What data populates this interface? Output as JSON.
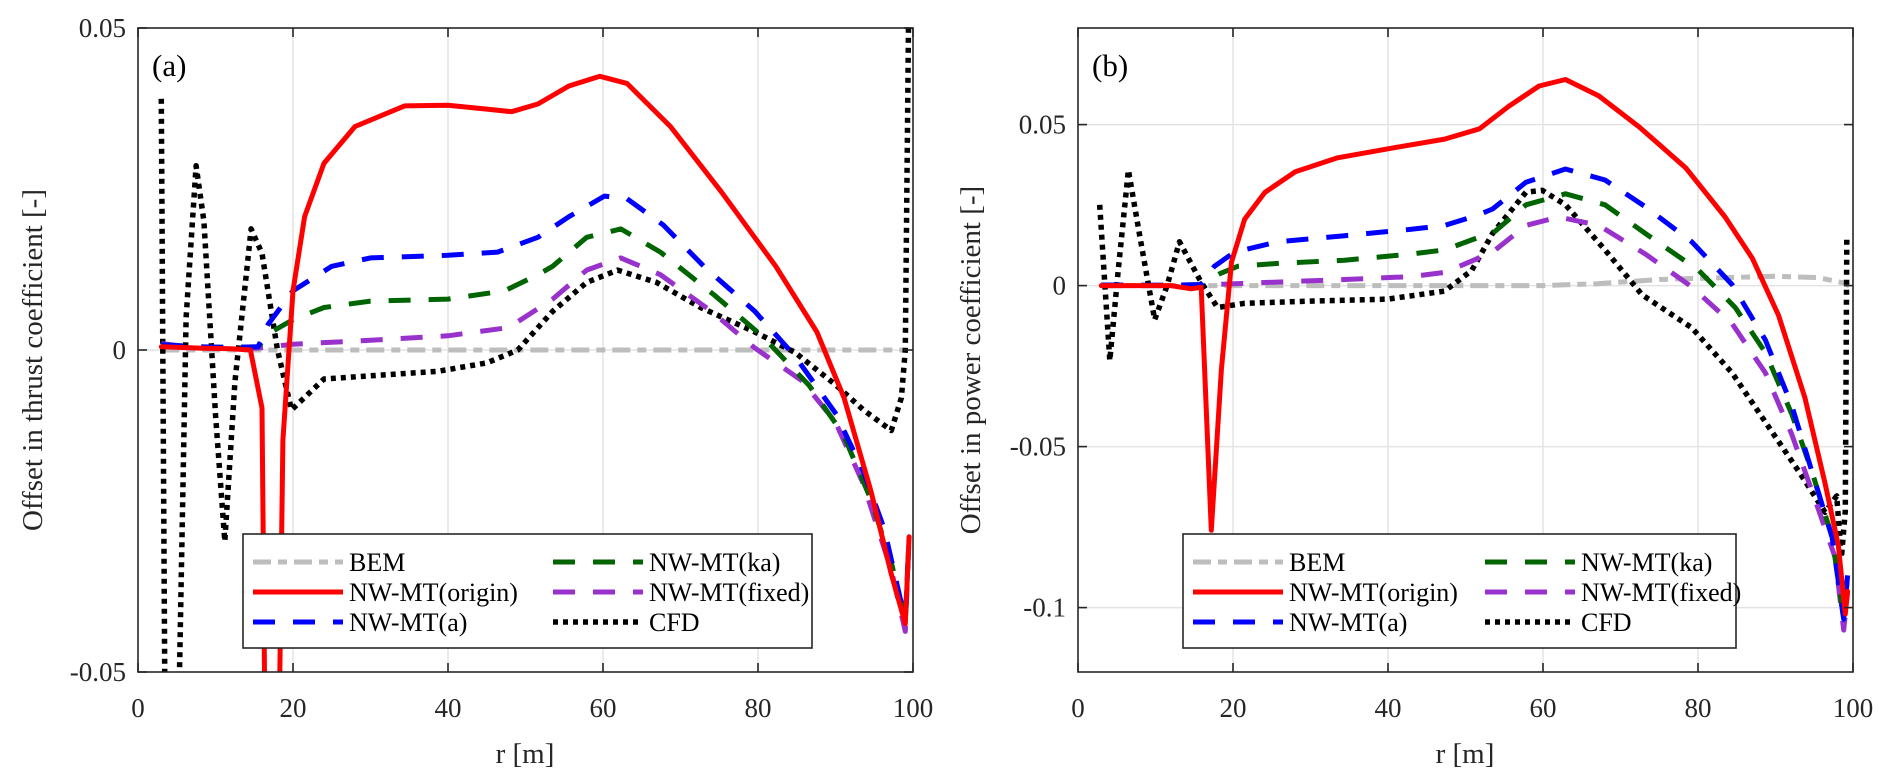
{
  "chart_data": [
    {
      "type": "line",
      "panel_label": "(a)",
      "title": "",
      "xlabel": "r [m]",
      "ylabel": "Offset in thrust coefficient [-]",
      "xlim": [
        0,
        100
      ],
      "ylim": [
        -0.05,
        0.05
      ],
      "xticks": [
        0,
        20,
        40,
        60,
        80,
        100
      ],
      "xtick_labels": [
        "0",
        "20",
        "40",
        "60",
        "80",
        "100"
      ],
      "yticks": [
        -0.05,
        0,
        0.05
      ],
      "ytick_labels": [
        "-0.05",
        "0",
        "0.05"
      ],
      "grid": true,
      "legend_position": "bottom-center",
      "series": [
        {
          "name": "BEM",
          "color": "#BDBDBD",
          "style": "dashdot",
          "x": [
            3,
            10,
            20,
            30,
            40,
            50,
            60,
            70,
            80,
            90,
            99
          ],
          "y": [
            0,
            0,
            0,
            0,
            0,
            0,
            0,
            0,
            0,
            0,
            0
          ]
        },
        {
          "name": "NW-MT(origin)",
          "color": "#FF0000",
          "style": "solid",
          "x": [
            3,
            8,
            12,
            14.5,
            16,
            16.4,
            17,
            18.2,
            18.7,
            20,
            21.5,
            24,
            28,
            34.4,
            40,
            45,
            48.2,
            51.6,
            55.6,
            59.6,
            63.1,
            68.7,
            75.3,
            82.3,
            87.6,
            91.1,
            94.6,
            97.2,
            99,
            99.5
          ],
          "y": [
            0.0005,
            0.0003,
            0.0002,
            0,
            -0.009,
            -0.06,
            -0.06,
            -0.06,
            -0.014,
            0.0092,
            0.0207,
            0.029,
            0.0347,
            0.0379,
            0.038,
            0.0374,
            0.037,
            0.0382,
            0.041,
            0.0425,
            0.0414,
            0.0347,
            0.0245,
            0.013,
            0.0028,
            -0.0074,
            -0.022,
            -0.0348,
            -0.0425,
            -0.029
          ]
        },
        {
          "name": "NW-MT(a)",
          "color": "#0000FF",
          "style": "dashed",
          "x": [
            3,
            8,
            12,
            15.5,
            16.8,
            20,
            25,
            30,
            40,
            46.4,
            51.6,
            55.6,
            60.2,
            63.1,
            67.8,
            73,
            79.6,
            84.8,
            90.1,
            93.6,
            96.3,
            99,
            99.5
          ],
          "y": [
            0.0008,
            0.0005,
            0.0004,
            0.0005,
            0.004,
            0.0092,
            0.013,
            0.0143,
            0.0147,
            0.0152,
            0.0175,
            0.0207,
            0.0239,
            0.0235,
            0.0194,
            0.013,
            0.006,
            -0.001,
            -0.01,
            -0.0189,
            -0.0278,
            -0.042,
            -0.029
          ]
        },
        {
          "name": "NW-MT(ka)",
          "color": "#006400",
          "style": "dashed",
          "x": [
            3,
            8,
            12,
            15.5,
            17.2,
            20,
            24,
            30,
            40,
            47.3,
            51.6,
            53.5,
            57.9,
            62.3,
            67.4,
            74.4,
            80.5,
            86.6,
            91,
            94.6,
            97.2,
            99,
            99.5
          ],
          "y": [
            0.0008,
            0.0005,
            0.0004,
            0.0005,
            0.0028,
            0.0047,
            0.0066,
            0.0076,
            0.0079,
            0.0092,
            0.0117,
            0.013,
            0.0175,
            0.0188,
            0.0152,
            0.0085,
            0.0022,
            -0.0055,
            -0.0131,
            -0.0233,
            -0.033,
            -0.042,
            -0.029
          ]
        },
        {
          "name": "NW-MT(fixed)",
          "color": "#9932CC",
          "style": "dashed",
          "x": [
            3,
            8,
            12,
            15.5,
            20,
            30,
            40,
            47.3,
            49,
            53.5,
            57.9,
            62.3,
            67.4,
            74,
            79.6,
            85.7,
            90,
            93.6,
            97.2,
            99,
            99.5
          ],
          "y": [
            0.001,
            0.0003,
            0.0002,
            0.0003,
            0.0009,
            0.0015,
            0.0022,
            0.0034,
            0.0044,
            0.0079,
            0.0124,
            0.0143,
            0.0117,
            0.006,
            0.0003,
            -0.0048,
            -0.0112,
            -0.0208,
            -0.0342,
            -0.0437,
            -0.029
          ]
        },
        {
          "name": "CFD",
          "color": "#000000",
          "style": "dotted",
          "x": [
            3,
            3.5,
            4.2,
            5.2,
            6.2,
            7.5,
            8.5,
            10,
            11.2,
            12.5,
            14.6,
            16,
            18,
            19.8,
            24,
            30,
            38.7,
            45,
            49,
            53.5,
            57.9,
            61.9,
            66.9,
            72.6,
            79.6,
            84.8,
            90.1,
            93.6,
            97.2,
            98.5,
            99,
            99.5
          ],
          "y": [
            0.039,
            -0.06,
            -0.06,
            -0.06,
            0.005,
            0.0286,
            0.02,
            -0.01,
            -0.0297,
            -0.005,
            0.0188,
            0.015,
            0.0,
            -0.0093,
            -0.0045,
            -0.004,
            -0.0033,
            -0.002,
            0,
            0.006,
            0.0105,
            0.0124,
            0.0105,
            0.0066,
            0.0028,
            -0.0004,
            -0.0055,
            -0.0093,
            -0.0125,
            -0.0074,
            0,
            0.06
          ]
        }
      ]
    },
    {
      "type": "line",
      "panel_label": "(b)",
      "title": "",
      "xlabel": "r [m]",
      "ylabel": "Offset in power coefficient [-]",
      "xlim": [
        0,
        100
      ],
      "ylim": [
        -0.12,
        0.08
      ],
      "xticks": [
        0,
        20,
        40,
        60,
        80,
        100
      ],
      "xtick_labels": [
        "0",
        "20",
        "40",
        "60",
        "80",
        "100"
      ],
      "yticks": [
        -0.1,
        -0.05,
        0,
        0.05
      ],
      "ytick_labels": [
        "-0.1",
        "-0.05",
        "0",
        "0.05"
      ],
      "grid": true,
      "legend_position": "bottom-center",
      "series": [
        {
          "name": "BEM",
          "color": "#BDBDBD",
          "style": "dashdot",
          "x": [
            3,
            10,
            20,
            30,
            40,
            50,
            60,
            67,
            75,
            83.5,
            90,
            95.5,
            98.5,
            99.5
          ],
          "y": [
            0,
            0,
            0,
            0,
            0,
            0,
            0,
            0.0006,
            0.0019,
            0.0025,
            0.0029,
            0.0025,
            0.001,
            0
          ]
        },
        {
          "name": "NW-MT(origin)",
          "color": "#FF0000",
          "style": "solid",
          "x": [
            3,
            8,
            12,
            14.6,
            15.9,
            17.2,
            18.5,
            19.8,
            21.5,
            24.1,
            28,
            33.5,
            40,
            47.3,
            51.8,
            55.6,
            59.5,
            62.9,
            67.2,
            72.4,
            78.4,
            83.5,
            87,
            90.4,
            93.8,
            96.4,
            98.1,
            99,
            99.3
          ],
          "y": [
            0,
            0,
            0,
            -0.001,
            -0.0005,
            -0.076,
            -0.026,
            0.0073,
            0.0206,
            0.0289,
            0.0353,
            0.0397,
            0.0425,
            0.0455,
            0.0487,
            0.0557,
            0.062,
            0.064,
            0.0589,
            0.0493,
            0.0366,
            0.0213,
            0.0085,
            -0.0093,
            -0.0348,
            -0.0615,
            -0.0806,
            -0.102,
            -0.095
          ]
        },
        {
          "name": "NW-MT(a)",
          "color": "#0000FF",
          "style": "dashed",
          "x": [
            3,
            8,
            12,
            15.8,
            17.6,
            20.2,
            25.8,
            34.4,
            43,
            47.3,
            51.6,
            53.5,
            57.8,
            62.9,
            68,
            73.2,
            79.2,
            84.4,
            88.7,
            92.1,
            94.7,
            97.3,
            98.8,
            99.3
          ],
          "y": [
            0.0002,
            0.0001,
            0.0001,
            0.0003,
            0.006,
            0.0104,
            0.0136,
            0.0155,
            0.0175,
            0.0187,
            0.0219,
            0.0238,
            0.0321,
            0.0362,
            0.0328,
            0.0245,
            0.0136,
            0.0003,
            -0.0169,
            -0.0373,
            -0.0577,
            -0.0781,
            -0.1036,
            -0.09
          ]
        },
        {
          "name": "NW-MT(ka)",
          "color": "#006400",
          "style": "dashed",
          "x": [
            3,
            8,
            12,
            15.8,
            18.3,
            20.6,
            25.8,
            34.4,
            43,
            47.3,
            51.6,
            53.5,
            57.8,
            62.9,
            68,
            73.2,
            80.1,
            84.8,
            88.7,
            92.1,
            94.7,
            97.3,
            98.8,
            99.3
          ],
          "y": [
            0.0002,
            0.0001,
            0.0001,
            0.0003,
            0.0037,
            0.006,
            0.0069,
            0.0079,
            0.0098,
            0.0111,
            0.0149,
            0.0162,
            0.0251,
            0.0285,
            0.0251,
            0.0162,
            0.0047,
            -0.0068,
            -0.0208,
            -0.0399,
            -0.0577,
            -0.0781,
            -0.1036,
            -0.09
          ]
        },
        {
          "name": "NW-MT(fixed)",
          "color": "#9932CC",
          "style": "dashed",
          "x": [
            3,
            8,
            12,
            15.8,
            20.2,
            34.4,
            43,
            47.3,
            49.2,
            53.5,
            57.8,
            62,
            67.2,
            73.2,
            79.2,
            84.4,
            88.7,
            92.1,
            95.5,
            97.7,
            98.8,
            99.3
          ],
          "y": [
            0,
            0,
            0,
            0.0002,
            0.0006,
            0.0019,
            0.0028,
            0.0041,
            0.006,
            0.0104,
            0.0187,
            0.0213,
            0.0187,
            0.0098,
            -0.0004,
            -0.0118,
            -0.0271,
            -0.0462,
            -0.0692,
            -0.0845,
            -0.107,
            -0.095
          ]
        },
        {
          "name": "CFD",
          "color": "#000000",
          "style": "dotted",
          "x": [
            2.8,
            4.1,
            5.2,
            6.5,
            8,
            9.9,
            11.5,
            13.1,
            15.9,
            18,
            21.5,
            30,
            40,
            47.3,
            50.8,
            53.5,
            57.8,
            59.9,
            62.9,
            68,
            72.8,
            79.2,
            84.4,
            88.7,
            93,
            96.4,
            97.9,
            98.5,
            99,
            99.2
          ],
          "y": [
            0.0251,
            -0.0233,
            0.005,
            0.0359,
            0.015,
            -0.0106,
            0.0,
            0.0136,
            0.001,
            -0.0068,
            -0.0055,
            -0.0048,
            -0.0042,
            -0.0017,
            0.0047,
            0.0162,
            0.029,
            0.0296,
            0.0251,
            0.0111,
            -0.0029,
            -0.0131,
            -0.0271,
            -0.0424,
            -0.0577,
            -0.0704,
            -0.0653,
            -0.0845,
            -0.07,
            0.0146
          ]
        }
      ]
    }
  ]
}
